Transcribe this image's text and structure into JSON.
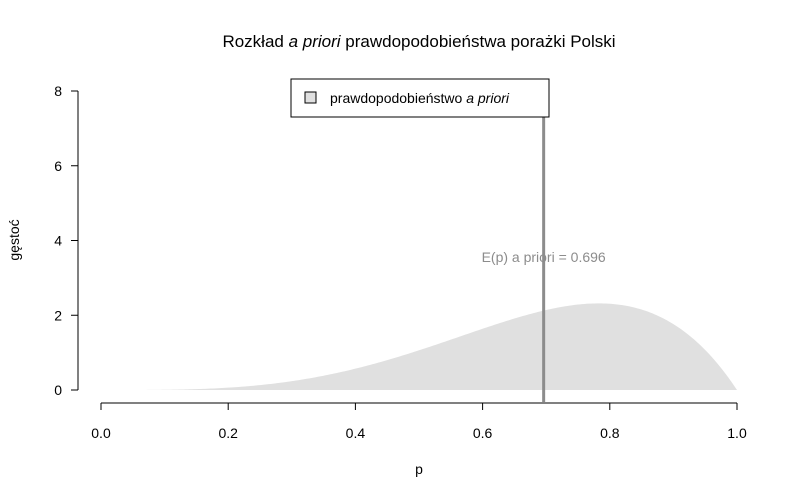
{
  "chart_data": {
    "type": "area",
    "title_parts": [
      "Rozkład ",
      "a priori",
      " prawdopodobieństwa porażki Polski"
    ],
    "xlabel": "p",
    "ylabel": "gęstoć",
    "xlim": [
      0,
      1
    ],
    "ylim": [
      0,
      8
    ],
    "x_ticks": [
      "0.0",
      "0.2",
      "0.4",
      "0.6",
      "0.8",
      "1.0"
    ],
    "y_ticks": [
      "0",
      "2",
      "4",
      "6",
      "8"
    ],
    "distribution": {
      "family": "beta",
      "alpha": 4.6,
      "beta": 2.0
    },
    "series": [
      {
        "fill_color": "#e0e0e0"
      }
    ],
    "legend": {
      "position": "top-center",
      "label_parts": [
        "prawdopodobieństwo ",
        "a priori"
      ]
    },
    "mean_line": {
      "x": 0.696,
      "color": "#8c8c8c"
    },
    "annotation": "E(p) a priori = 0.696"
  }
}
